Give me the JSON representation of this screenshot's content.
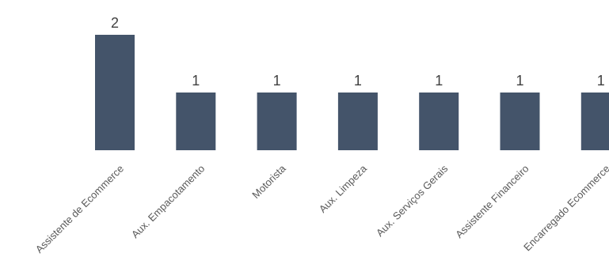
{
  "chart_data": {
    "type": "bar",
    "categories": [
      "Assistente de Ecommerce",
      "Aux. Empacotamento",
      "Motorista",
      "Aux. Limpeza",
      "Aux. Serviços Gerais",
      "Assistente Financeiro",
      "Encarregado Ecommerce"
    ],
    "values": [
      2,
      1,
      1,
      1,
      1,
      1,
      1
    ],
    "data_labels": [
      "2",
      "1",
      "1",
      "1",
      "1",
      "1",
      "1"
    ],
    "ylim": [
      0,
      2
    ],
    "grid": false,
    "legend": "none",
    "bar_color": "#44546A"
  }
}
